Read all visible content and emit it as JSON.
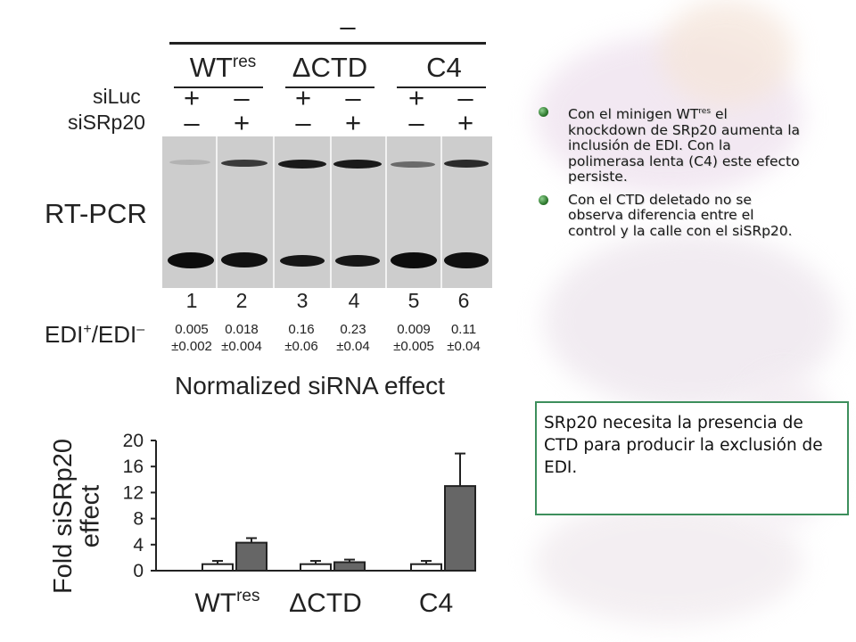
{
  "slide": {
    "bullets": [
      {
        "pre": "Con el minigen WT",
        "sup": "res",
        "post": " el knockdown de SRp20 aumenta la inclusión de EDI. Con la polimerasa lenta (C4) este efecto persiste."
      },
      {
        "pre": "Con el CTD deletado no se observa diferencia entre el control y la calle con el siSRp20.",
        "sup": "",
        "post": ""
      }
    ],
    "callout": "SRp20 necesita la presencia de CTD para producir la exclusión de EDI."
  },
  "figure": {
    "top_header": "–",
    "groups": [
      {
        "name": "WT",
        "sup": "res"
      },
      {
        "name": "ΔCTD",
        "sup": ""
      },
      {
        "name": "C4",
        "sup": ""
      }
    ],
    "row_labels": {
      "siLuc": "siLuc",
      "siSRp20": "siSRp20"
    },
    "siluc_signs": [
      "+",
      "–",
      "+",
      "–",
      "+",
      "–"
    ],
    "sisrp20_signs": [
      "–",
      "+",
      "–",
      "+",
      "–",
      "+"
    ],
    "rtpcr_label": "RT-PCR",
    "lane_numbers": [
      "1",
      "2",
      "3",
      "4",
      "5",
      "6"
    ],
    "ratio_label": {
      "a": "EDI",
      "a_sup": "+",
      "b": "/EDI",
      "b_sup": "–"
    },
    "ratios": [
      {
        "v": "0.005",
        "e": "±0.002"
      },
      {
        "v": "0.018",
        "e": "±0.004"
      },
      {
        "v": "0.16",
        "e": "±0.06"
      },
      {
        "v": "0.23",
        "e": "±0.04"
      },
      {
        "v": "0.009",
        "e": "±0.005"
      },
      {
        "v": "0.11",
        "e": "±0.04"
      }
    ],
    "chart_title": "Normalized siRNA effect"
  },
  "chart_data": {
    "type": "bar",
    "title": "Normalized siRNA effect",
    "ylabel": "Fold siSRp20 effect",
    "xlabel": "",
    "ylim": [
      0,
      20
    ],
    "yticks": [
      "20",
      "16",
      "12",
      "8",
      "4",
      "0"
    ],
    "categories": [
      {
        "name": "WT",
        "sup": "res"
      },
      {
        "name": "ΔCTD",
        "sup": ""
      },
      {
        "name": "C4",
        "sup": ""
      }
    ],
    "series": [
      {
        "values": [
          1.0,
          1.0,
          1.0
        ],
        "errors": [
          0.5,
          0.5,
          0.5
        ],
        "color": "#ffffff"
      },
      {
        "values": [
          4.3,
          1.3,
          13.0
        ],
        "errors": [
          0.7,
          0.4,
          5.0
        ],
        "color": "#666666"
      }
    ]
  },
  "colors": {
    "callout_border": "#3d8f5c",
    "bar_dark": "#666666",
    "gel": "#cdcdcd"
  }
}
